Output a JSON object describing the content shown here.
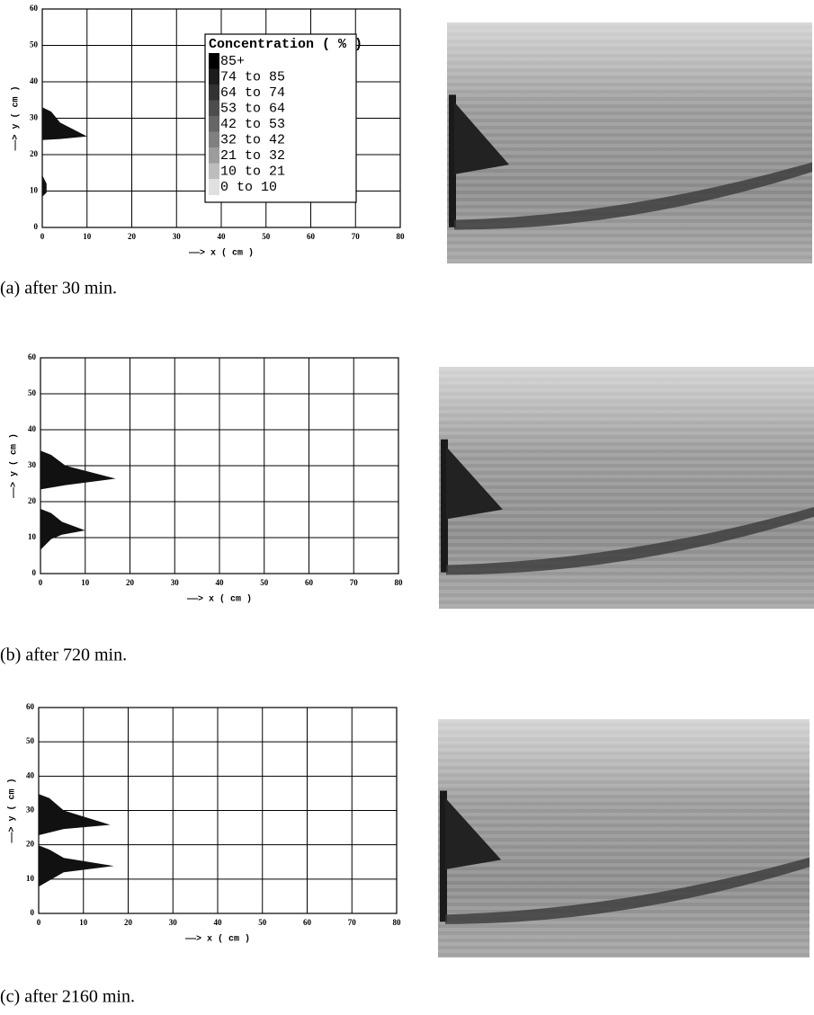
{
  "axes": {
    "xlim": [
      0,
      80
    ],
    "ylim": [
      0,
      60
    ],
    "xticks": [
      0,
      10,
      20,
      30,
      40,
      50,
      60,
      70,
      80
    ],
    "yticks": [
      0,
      10,
      20,
      30,
      40,
      50,
      60
    ],
    "xlabel": "——> x ( cm )",
    "ylabel": "——> y ( cm )"
  },
  "legend": {
    "title": "Concentration ( % )",
    "items": [
      "85+",
      "74 to 85",
      "64 to 74",
      "53 to 64",
      "42 to 53",
      "32 to 42",
      "21 to 32",
      "10 to 21",
      "0 to 10"
    ],
    "colors": [
      "#000000",
      "#1c1c1c",
      "#333333",
      "#4d4d4d",
      "#666666",
      "#808080",
      "#9c9c9c",
      "#bdbdbd",
      "#e0e0e0"
    ]
  },
  "panels": [
    {
      "caption": "(a) after 30 min."
    },
    {
      "caption": "(b) after 720 min."
    },
    {
      "caption": "(c) after 2160 min."
    }
  ]
}
